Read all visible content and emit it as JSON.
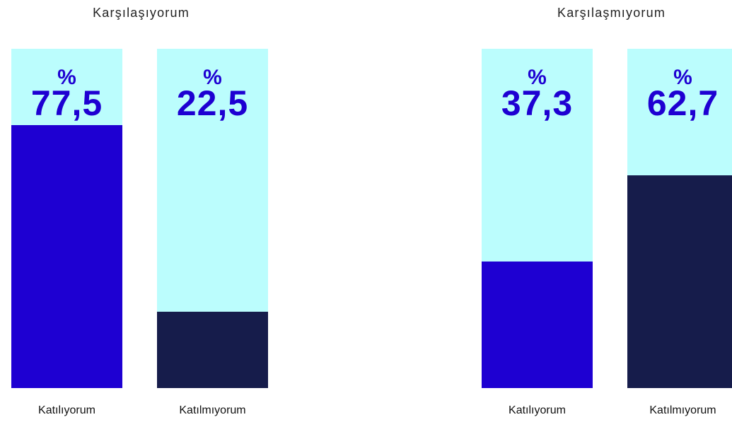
{
  "chart_data": [
    {
      "type": "bar",
      "title": "Karşılaşıyorum",
      "unit": "%",
      "categories": [
        "Katılıyorum",
        "Katılmıyorum"
      ],
      "values": [
        77.5,
        22.5
      ],
      "value_labels": [
        "77,5",
        "22,5"
      ],
      "colors": [
        "#1e00d2",
        "#161c4b"
      ],
      "background": "#bbfdfd",
      "ylim": [
        0,
        100
      ]
    },
    {
      "type": "bar",
      "title": "Karşılaşmıyorum",
      "unit": "%",
      "categories": [
        "Katılıyorum",
        "Katılmıyorum"
      ],
      "values": [
        37.3,
        62.7
      ],
      "value_labels": [
        "37,3",
        "62,7"
      ],
      "colors": [
        "#1e00d2",
        "#161c4b"
      ],
      "background": "#bbfdfd",
      "ylim": [
        0,
        100
      ]
    }
  ]
}
